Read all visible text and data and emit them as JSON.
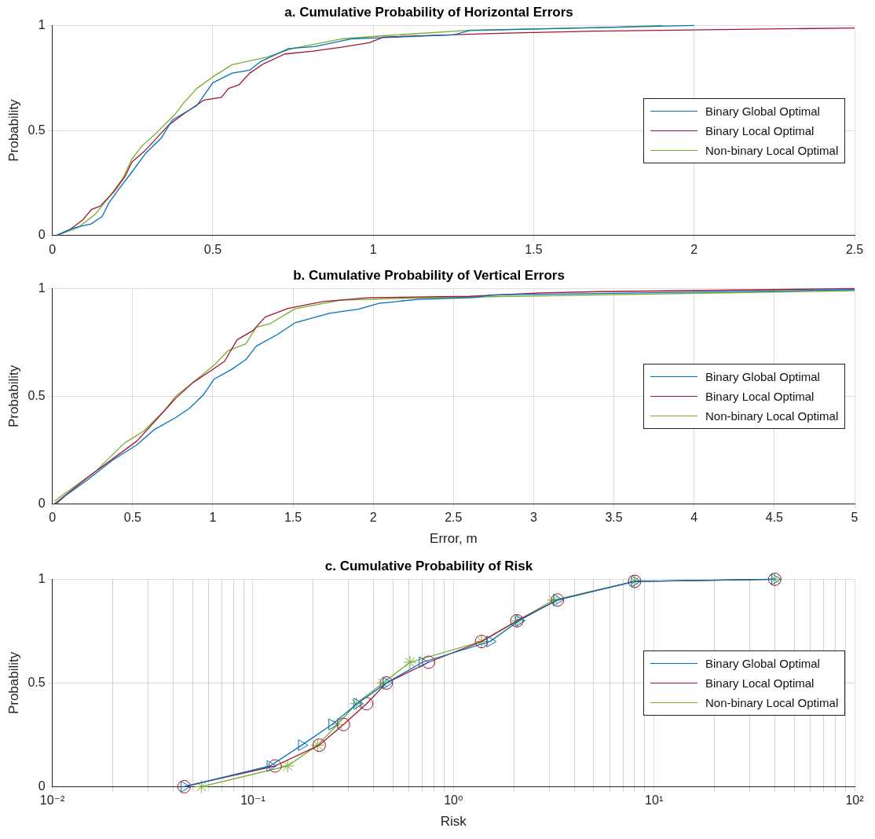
{
  "chart_data": [
    {
      "type": "line",
      "title": "a. Cumulative Probability of Horizontal Errors",
      "ylabel": "Probability",
      "xlim": [
        0,
        2.5
      ],
      "xticks": [
        0,
        0.5,
        1,
        1.5,
        2,
        2.5
      ],
      "ylim": [
        0,
        1
      ],
      "yticks": [
        0,
        0.5,
        1
      ],
      "grid": true,
      "legend": "right",
      "series": [
        {
          "name": "Binary Global Optimal",
          "color": "#0072bd",
          "x": [
            0.012,
            0.067,
            0.12,
            0.155,
            0.176,
            0.21,
            0.242,
            0.29,
            0.34,
            0.374,
            0.45,
            0.5,
            0.56,
            0.615,
            0.648,
            0.736,
            0.82,
            0.93,
            1.0,
            1.25,
            1.3,
            1.7,
            2.0
          ],
          "values": [
            0,
            0.036,
            0.055,
            0.09,
            0.155,
            0.227,
            0.29,
            0.39,
            0.465,
            0.55,
            0.618,
            0.727,
            0.773,
            0.787,
            0.827,
            0.89,
            0.9,
            0.936,
            0.94,
            0.955,
            0.976,
            0.99,
            1.0
          ]
        },
        {
          "name": "Binary Local Optimal",
          "color": "#a2142f",
          "x": [
            0.012,
            0.056,
            0.094,
            0.122,
            0.149,
            0.193,
            0.226,
            0.248,
            0.286,
            0.32,
            0.363,
            0.412,
            0.473,
            0.527,
            0.549,
            0.582,
            0.615,
            0.659,
            0.724,
            0.812,
            0.9,
            0.988,
            1.032,
            1.417,
            1.69,
            2.5
          ],
          "values": [
            0,
            0.03,
            0.073,
            0.124,
            0.14,
            0.21,
            0.28,
            0.35,
            0.4,
            0.455,
            0.527,
            0.582,
            0.645,
            0.658,
            0.7,
            0.718,
            0.773,
            0.818,
            0.864,
            0.878,
            0.896,
            0.918,
            0.945,
            0.964,
            0.973,
            0.988
          ]
        },
        {
          "name": "Non-binary Local Optimal",
          "color": "#77ac30",
          "x": [
            0.012,
            0.078,
            0.133,
            0.176,
            0.22,
            0.248,
            0.28,
            0.32,
            0.38,
            0.407,
            0.45,
            0.5,
            0.56,
            0.67,
            0.747,
            0.9,
            1.032,
            1.305,
            1.71,
            1.9
          ],
          "values": [
            0,
            0.036,
            0.1,
            0.182,
            0.273,
            0.364,
            0.427,
            0.482,
            0.573,
            0.627,
            0.7,
            0.755,
            0.813,
            0.85,
            0.89,
            0.936,
            0.951,
            0.978,
            0.99,
            1.0
          ]
        }
      ]
    },
    {
      "type": "line",
      "title": "b. Cumulative Probability of Vertical Errors",
      "xlabel": "Error, m",
      "ylabel": "Probability",
      "xlim": [
        0,
        5
      ],
      "xticks": [
        0,
        0.5,
        1,
        1.5,
        2,
        2.5,
        3,
        3.5,
        4,
        4.5,
        5
      ],
      "ylim": [
        0,
        1
      ],
      "yticks": [
        0,
        0.5,
        1
      ],
      "grid": true,
      "legend": "right",
      "series": [
        {
          "name": "Binary Global Optimal",
          "color": "#0072bd",
          "x": [
            0.024,
            0.09,
            0.22,
            0.374,
            0.527,
            0.637,
            0.768,
            0.856,
            0.943,
            1.009,
            1.118,
            1.206,
            1.271,
            1.403,
            1.512,
            1.731,
            1.906,
            2.037,
            2.278,
            2.63,
            2.74,
            3.41,
            5
          ],
          "values": [
            0,
            0.043,
            0.112,
            0.202,
            0.274,
            0.346,
            0.4,
            0.445,
            0.508,
            0.58,
            0.625,
            0.67,
            0.733,
            0.787,
            0.841,
            0.886,
            0.904,
            0.932,
            0.95,
            0.958,
            0.971,
            0.977,
            0.995
          ]
        },
        {
          "name": "Binary Local Optimal",
          "color": "#a2142f",
          "x": [
            0.013,
            0.11,
            0.265,
            0.396,
            0.527,
            0.637,
            0.768,
            0.877,
            0.987,
            1.074,
            1.151,
            1.25,
            1.326,
            1.468,
            1.687,
            1.972,
            2.6,
            3.04,
            3.41,
            5
          ],
          "values": [
            0,
            0.058,
            0.148,
            0.22,
            0.292,
            0.382,
            0.49,
            0.564,
            0.618,
            0.663,
            0.762,
            0.805,
            0.868,
            0.908,
            0.94,
            0.958,
            0.964,
            0.98,
            0.986,
            1.0
          ]
        },
        {
          "name": "Non-binary Local Optimal",
          "color": "#77ac30",
          "x": [
            0.013,
            0.13,
            0.265,
            0.45,
            0.57,
            0.703,
            0.768,
            0.877,
            1.009,
            1.096,
            1.206,
            1.271,
            1.359,
            1.512,
            1.796,
            2.168,
            3.41,
            5
          ],
          "values": [
            0.013,
            0.076,
            0.148,
            0.283,
            0.338,
            0.437,
            0.5,
            0.564,
            0.645,
            0.712,
            0.744,
            0.82,
            0.838,
            0.906,
            0.946,
            0.955,
            0.971,
            0.99
          ]
        }
      ]
    },
    {
      "type": "line",
      "title": "c. Cumulative Probability of Risk",
      "xlabel": "Risk",
      "ylabel": "Probability",
      "log": "x",
      "xlim": [
        0.01,
        100
      ],
      "xticks": [
        {
          "value": 0.01,
          "label": "10⁻²"
        },
        {
          "value": 0.02,
          "label": null
        },
        {
          "value": 0.03,
          "label": null
        },
        {
          "value": 0.04,
          "label": null
        },
        {
          "value": 0.05,
          "label": null
        },
        {
          "value": 0.06,
          "label": null
        },
        {
          "value": 0.07,
          "label": null
        },
        {
          "value": 0.08,
          "label": null
        },
        {
          "value": 0.09,
          "label": null
        },
        {
          "value": 0.1,
          "label": "10⁻¹"
        },
        {
          "value": 0.2,
          "label": null
        },
        {
          "value": 0.3,
          "label": null
        },
        {
          "value": 0.4,
          "label": null
        },
        {
          "value": 0.5,
          "label": null
        },
        {
          "value": 0.6,
          "label": null
        },
        {
          "value": 0.7,
          "label": null
        },
        {
          "value": 0.8,
          "label": null
        },
        {
          "value": 0.9,
          "label": null
        },
        {
          "value": 1,
          "label": "10⁰"
        },
        {
          "value": 2,
          "label": null
        },
        {
          "value": 3,
          "label": null
        },
        {
          "value": 4,
          "label": null
        },
        {
          "value": 5,
          "label": null
        },
        {
          "value": 6,
          "label": null
        },
        {
          "value": 7,
          "label": null
        },
        {
          "value": 8,
          "label": null
        },
        {
          "value": 9,
          "label": null
        },
        {
          "value": 10,
          "label": "10¹"
        },
        {
          "value": 20,
          "label": null
        },
        {
          "value": 30,
          "label": null
        },
        {
          "value": 40,
          "label": null
        },
        {
          "value": 50,
          "label": null
        },
        {
          "value": 60,
          "label": null
        },
        {
          "value": 70,
          "label": null
        },
        {
          "value": 80,
          "label": null
        },
        {
          "value": 90,
          "label": null
        },
        {
          "value": 100,
          "label": "10²"
        }
      ],
      "ylim": [
        0,
        1
      ],
      "yticks": [
        0,
        0.5,
        1
      ],
      "grid": true,
      "legend": "right",
      "series": [
        {
          "name": "Binary Global Optimal",
          "color": "#0072bd",
          "marker": "triangle",
          "x": [
            0.0454,
            0.122,
            0.175,
            0.248,
            0.331,
            0.463,
            0.7,
            1.52,
            2.12,
            3.28,
            8,
            40
          ],
          "values": [
            0,
            0.1,
            0.2,
            0.3,
            0.4,
            0.5,
            0.6,
            0.7,
            0.8,
            0.9,
            0.99,
            1
          ]
        },
        {
          "name": "Binary Local Optimal",
          "color": "#a2142f",
          "marker": "circle",
          "x": [
            0.0454,
            0.129,
            0.214,
            0.283,
            0.369,
            0.463,
            0.751,
            1.38,
            2.07,
            3.3,
            8,
            40
          ],
          "values": [
            0,
            0.1,
            0.2,
            0.3,
            0.4,
            0.5,
            0.6,
            0.7,
            0.8,
            0.9,
            0.99,
            1
          ]
        },
        {
          "name": "Non-binary Local Optimal",
          "color": "#77ac30",
          "marker": "cross",
          "x": [
            0.0553,
            0.149,
            0.21,
            0.264,
            0.328,
            0.445,
            0.607,
            1.38,
            2.09,
            3.15,
            8,
            40
          ],
          "values": [
            0,
            0.1,
            0.2,
            0.3,
            0.4,
            0.5,
            0.6,
            0.7,
            0.8,
            0.9,
            0.99,
            1
          ]
        }
      ]
    }
  ]
}
